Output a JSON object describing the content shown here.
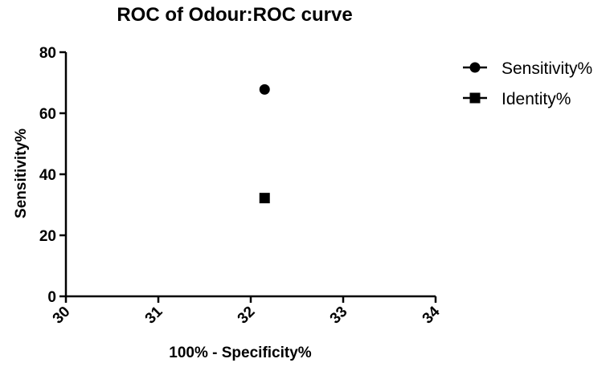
{
  "chart_data": {
    "type": "scatter",
    "title": "ROC of Odour:ROC curve",
    "xlabel": "100%  - Specificity%",
    "ylabel": "Sensitivity%",
    "xlim": [
      30,
      34
    ],
    "ylim": [
      0,
      80
    ],
    "x_ticks": [
      "30",
      "31",
      "32",
      "33",
      "34"
    ],
    "y_ticks": [
      "0",
      "20",
      "40",
      "60",
      "80"
    ],
    "grid": false,
    "legend_position": "top-right",
    "series": [
      {
        "name": "Sensitivity%",
        "marker": "circle",
        "color": "#000000",
        "points": [
          {
            "x": 32.15,
            "y": 67.8
          }
        ]
      },
      {
        "name": "Identity%",
        "marker": "square",
        "color": "#000000",
        "points": [
          {
            "x": 32.15,
            "y": 32.2
          }
        ]
      }
    ]
  }
}
